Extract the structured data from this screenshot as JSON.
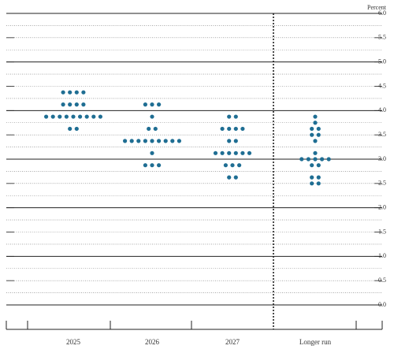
{
  "chart_data": {
    "type": "dot",
    "y_label": "Percent",
    "categories": [
      "2025",
      "2026",
      "2027",
      "Longer run"
    ],
    "values": [
      [
        4.375,
        4.375,
        4.375,
        4.375,
        4.125,
        4.125,
        4.125,
        4.125,
        3.875,
        3.875,
        3.875,
        3.875,
        3.875,
        3.875,
        3.875,
        3.875,
        3.875,
        3.625,
        3.625
      ],
      [
        4.125,
        4.125,
        4.125,
        3.875,
        3.625,
        3.625,
        3.375,
        3.375,
        3.375,
        3.375,
        3.375,
        3.375,
        3.375,
        3.375,
        3.375,
        3.125,
        2.875,
        2.875,
        2.875
      ],
      [
        3.875,
        3.875,
        3.625,
        3.625,
        3.625,
        3.625,
        3.375,
        3.375,
        3.125,
        3.125,
        3.125,
        3.125,
        3.125,
        3.125,
        2.875,
        2.875,
        2.875,
        2.625,
        2.625
      ],
      [
        3.875,
        3.75,
        3.625,
        3.625,
        3.5,
        3.5,
        3.375,
        3.125,
        3.0,
        3.0,
        3.0,
        3.0,
        3.0,
        2.875,
        2.875,
        2.625,
        2.625,
        2.5,
        2.5
      ]
    ],
    "color": "#1f6e93",
    "ylim": [
      0,
      6
    ],
    "yticks": [
      {
        "value": 0,
        "label": "0.0"
      },
      0.5,
      {
        "value": 1,
        "label": "1.0"
      },
      1.5,
      {
        "value": 2,
        "label": "2.0"
      },
      2.5,
      {
        "value": 3,
        "label": "3.0"
      },
      3.5,
      {
        "value": 4,
        "label": "4.0"
      },
      4.5,
      {
        "value": 5,
        "label": "5.0"
      },
      5.5,
      {
        "value": 6,
        "label": "6.0"
      }
    ],
    "minor_yticks": [
      0.25,
      0.75,
      1.25,
      1.75,
      2.25,
      2.75,
      3.25,
      3.75,
      4.25,
      4.75,
      5.25,
      5.75
    ],
    "grid": true
  }
}
